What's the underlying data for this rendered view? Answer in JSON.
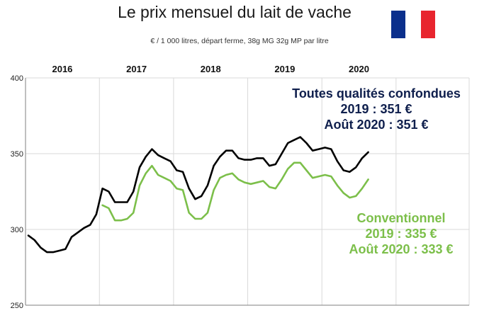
{
  "title": "Le prix mensuel du lait de vache",
  "subtitle": "€ / 1 000 litres, départ ferme, 38g MG 32g MP par litre",
  "flag": {
    "colors": [
      "#0b2f8c",
      "#ffffff",
      "#e8252e"
    ]
  },
  "colors": {
    "total": "#000000",
    "conventionnel": "#7cbf4a",
    "annot_total": "#0f1f4d",
    "grid": "#d9d9d9"
  },
  "annotations": {
    "total": [
      "Toutes qualités confondues",
      "2019 : 351 €",
      "Août 2020 :  351 €"
    ],
    "conventionnel": [
      "Conventionnel",
      "2019 : 335 €",
      "Août 2020 : 333 €"
    ]
  },
  "chart_data": {
    "type": "line",
    "year_labels": [
      "2016",
      "2017",
      "2018",
      "2019",
      "2020"
    ],
    "yticks": [
      250,
      300,
      350,
      400
    ],
    "ylim": [
      250,
      400
    ],
    "grid": true,
    "x_start_month": 1,
    "series": [
      {
        "key": "total",
        "start_index": 0,
        "values": [
          296,
          293,
          288,
          285,
          285,
          286,
          287,
          295,
          298,
          301,
          303,
          310,
          327,
          325,
          318,
          318,
          318,
          325,
          341,
          348,
          353,
          349,
          347,
          345,
          339,
          338,
          327,
          320,
          322,
          329,
          342,
          348,
          352,
          352,
          347,
          346,
          346,
          347,
          347,
          342,
          343,
          350,
          357,
          359,
          361,
          357,
          352,
          353,
          354,
          353,
          345,
          339,
          338,
          341,
          347,
          351
        ]
      },
      {
        "key": "conventionnel",
        "start_index": 12,
        "values": [
          316,
          314,
          306,
          306,
          307,
          311,
          329,
          337,
          342,
          336,
          334,
          332,
          327,
          326,
          311,
          307,
          307,
          311,
          326,
          334,
          336,
          337,
          333,
          331,
          330,
          331,
          332,
          328,
          327,
          333,
          340,
          344,
          344,
          339,
          334,
          335,
          336,
          335,
          329,
          324,
          321,
          322,
          327,
          333
        ]
      }
    ]
  }
}
